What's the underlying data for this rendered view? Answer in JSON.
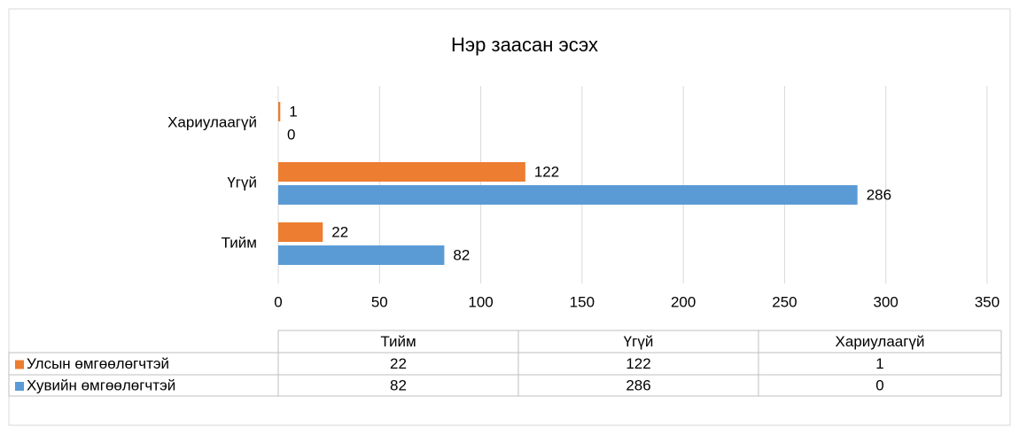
{
  "chart_data": {
    "type": "hbar",
    "title": "Нэр заасан эсэх",
    "categories": [
      "Тийм",
      "Үгүй",
      "Хариулаагүй"
    ],
    "series": [
      {
        "name": "Улсын өмгөөлөгчтэй",
        "color": "#ed7d31",
        "values": [
          22,
          122,
          1
        ]
      },
      {
        "name": "Хувийн өмгөөлөгчтэй",
        "color": "#5b9bd5",
        "values": [
          82,
          286,
          0
        ]
      }
    ],
    "xlim": [
      0,
      350
    ],
    "xticks": [
      0,
      50,
      100,
      150,
      200,
      250,
      300,
      350
    ],
    "grid": true
  }
}
